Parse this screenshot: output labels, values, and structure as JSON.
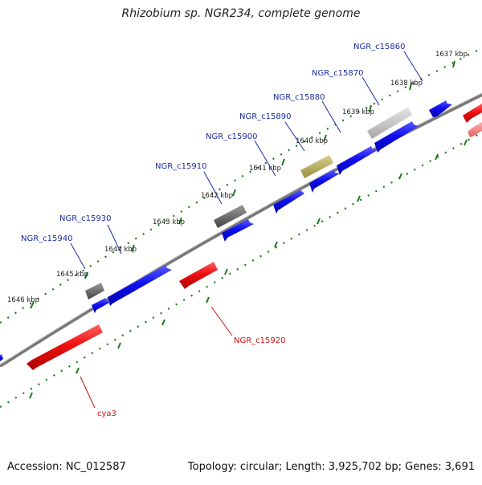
{
  "title": "Rhizobium sp. NGR234, complete genome",
  "footer": {
    "accession": "Accession: NC_012587",
    "summary": "Topology: circular; Length: 3,925,702 bp; Genes: 3,691"
  },
  "ticks": [
    "1637 kbp",
    "1638 kbp",
    "1639 kbp",
    "1640 kbp",
    "1641 kbp",
    "1642 kbp",
    "1643 kbp",
    "1644 kbp",
    "1645 kbp",
    "1646 kbp"
  ],
  "genes": [
    {
      "label": "NGR_c15860",
      "strand": "+"
    },
    {
      "label": "NGR_c15870",
      "strand": "+"
    },
    {
      "label": "NGR_c15880",
      "strand": "+"
    },
    {
      "label": "NGR_c15890",
      "strand": "+"
    },
    {
      "label": "NGR_c15900",
      "strand": "+"
    },
    {
      "label": "NGR_c15910",
      "strand": "+"
    },
    {
      "label": "NGR_c15930",
      "strand": "+"
    },
    {
      "label": "NGR_c15940",
      "strand": "+"
    },
    {
      "label": "NGR_c15920",
      "strand": "-"
    },
    {
      "label": "cya3",
      "strand": "-"
    }
  ],
  "colors": {
    "forward_gene": "#0000ee",
    "reverse_gene": "#ee0000",
    "backbone": "#777777",
    "ticks": "#1a7a1a",
    "forward_label": "#1a2ba0",
    "reverse_label": "#cc1111"
  }
}
